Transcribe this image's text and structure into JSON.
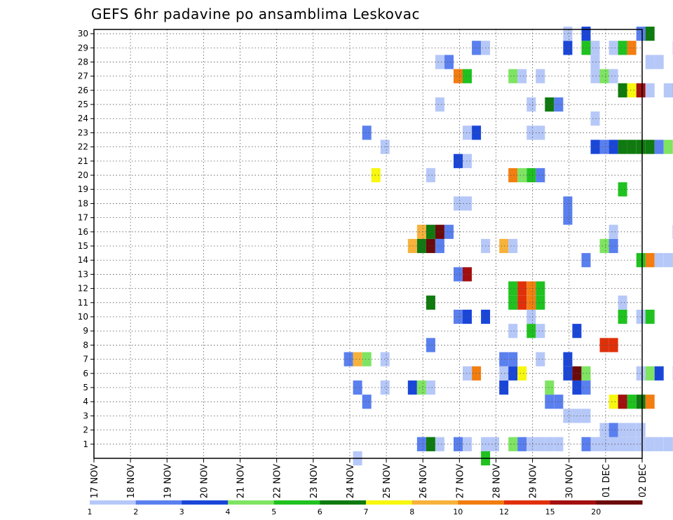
{
  "chart_data": {
    "type": "heatmap",
    "title": "GEFS 6hr padavine po ansamblima Leskovac",
    "xlabel": "",
    "ylabel": "",
    "x_ticks": [
      "17 NOV",
      "18 NOV",
      "19 NOV",
      "20 NOV",
      "21 NOV",
      "22 NOV",
      "23 NOV",
      "24 NOV",
      "25 NOV",
      "26 NOV",
      "27 NOV",
      "28 NOV",
      "29 NOV",
      "30 NOV",
      "01 DEC",
      "02 DEC"
    ],
    "y_ticks": [
      1,
      2,
      3,
      4,
      5,
      6,
      7,
      8,
      9,
      10,
      11,
      12,
      13,
      14,
      15,
      16,
      17,
      18,
      19,
      20,
      21,
      22,
      23,
      24,
      25,
      26,
      27,
      28,
      29,
      30
    ],
    "ylim": [
      0,
      30
    ],
    "grid": true,
    "colorbar": {
      "labels": [
        "1",
        "2",
        "3",
        "4",
        "5",
        "6",
        "7",
        "8",
        "10",
        "12",
        "15",
        "20"
      ],
      "colors": [
        "#b6c8f8",
        "#5a7fee",
        "#1a46d8",
        "#7ee462",
        "#1fc21f",
        "#0f7a0f",
        "#f7f70f",
        "#f7b23c",
        "#f27d10",
        "#e0300a",
        "#a30f0f",
        "#6b0a0a"
      ]
    },
    "cells": [
      [
        1,
        8.84,
        0
      ],
      [
        1,
        8.84,
        1
      ],
      [
        1,
        9.09,
        0
      ],
      [
        1,
        9.09,
        5
      ],
      [
        1,
        9.34,
        0
      ],
      [
        1,
        9.84,
        1
      ],
      [
        1,
        10.09,
        0
      ],
      [
        1,
        10.59,
        0
      ],
      [
        1,
        10.84,
        0
      ],
      [
        1,
        11.34,
        3
      ],
      [
        1,
        11.59,
        1
      ],
      [
        1,
        11.84,
        0
      ],
      [
        1,
        12.09,
        0
      ],
      [
        1,
        12.34,
        0
      ],
      [
        1,
        12.59,
        0
      ],
      [
        1,
        13.34,
        1
      ],
      [
        1,
        13.59,
        0
      ],
      [
        1,
        13.84,
        0
      ],
      [
        1,
        14.09,
        0
      ],
      [
        1,
        14.34,
        0
      ],
      [
        1,
        14.59,
        0
      ],
      [
        1,
        14.84,
        0
      ],
      [
        1,
        15.09,
        0
      ],
      [
        1,
        15.34,
        0
      ],
      [
        1,
        15.59,
        0
      ],
      [
        1,
        15.84,
        0
      ],
      [
        2,
        13.84,
        0
      ],
      [
        2,
        14.09,
        1
      ],
      [
        2,
        14.34,
        0
      ],
      [
        2,
        14.59,
        0
      ],
      [
        2,
        14.84,
        0
      ],
      [
        3,
        12.84,
        0
      ],
      [
        3,
        13.09,
        0
      ],
      [
        3,
        13.34,
        0
      ],
      [
        4,
        7.34,
        1
      ],
      [
        4,
        12.34,
        1
      ],
      [
        4,
        12.59,
        1
      ],
      [
        4,
        14.09,
        6
      ],
      [
        4,
        14.34,
        10
      ],
      [
        4,
        14.59,
        4
      ],
      [
        4,
        14.84,
        5
      ],
      [
        4,
        15.09,
        8
      ],
      [
        5,
        7.84,
        0
      ],
      [
        5,
        7.09,
        1
      ],
      [
        5,
        8.59,
        2
      ],
      [
        5,
        8.84,
        3
      ],
      [
        5,
        9.09,
        0
      ],
      [
        5,
        11.09,
        2
      ],
      [
        5,
        12.34,
        3
      ],
      [
        5,
        13.09,
        2
      ],
      [
        5,
        13.34,
        1
      ],
      [
        6,
        10.09,
        0
      ],
      [
        6,
        10.34,
        8
      ],
      [
        6,
        11.09,
        0
      ],
      [
        6,
        11.34,
        2
      ],
      [
        6,
        11.59,
        6
      ],
      [
        6,
        12.84,
        2
      ],
      [
        6,
        13.09,
        11
      ],
      [
        6,
        13.34,
        3
      ],
      [
        6,
        14.84,
        0
      ],
      [
        6,
        15.09,
        3
      ],
      [
        6,
        15.34,
        2
      ],
      [
        6,
        15.84,
        1
      ],
      [
        7,
        6.84,
        1
      ],
      [
        7,
        7.09,
        7
      ],
      [
        7,
        7.34,
        3
      ],
      [
        7,
        7.84,
        0
      ],
      [
        7,
        11.09,
        1
      ],
      [
        7,
        11.34,
        1
      ],
      [
        7,
        12.84,
        2
      ],
      [
        7,
        12.09,
        0
      ],
      [
        8,
        9.09,
        1
      ],
      [
        8,
        13.84,
        9
      ],
      [
        8,
        14.09,
        9
      ],
      [
        9,
        11.34,
        0
      ],
      [
        9,
        11.84,
        4
      ],
      [
        9,
        12.09,
        0
      ],
      [
        9,
        13.09,
        2
      ],
      [
        10,
        9.84,
        1
      ],
      [
        10,
        10.09,
        2
      ],
      [
        10,
        10.59,
        2
      ],
      [
        10,
        11.84,
        0
      ],
      [
        10,
        14.34,
        4
      ],
      [
        10,
        14.84,
        0
      ],
      [
        10,
        15.09,
        4
      ],
      [
        11,
        9.09,
        5
      ],
      [
        11,
        11.34,
        4
      ],
      [
        11,
        11.59,
        9
      ],
      [
        11,
        11.84,
        8
      ],
      [
        11,
        12.09,
        4
      ],
      [
        11,
        14.34,
        0
      ],
      [
        12,
        11.34,
        4
      ],
      [
        12,
        11.59,
        9
      ],
      [
        12,
        11.84,
        8
      ],
      [
        12,
        12.09,
        4
      ],
      [
        13,
        9.84,
        1
      ],
      [
        13,
        10.09,
        10
      ],
      [
        14,
        13.34,
        1
      ],
      [
        14,
        14.84,
        4
      ],
      [
        14,
        15.09,
        8
      ],
      [
        14,
        15.34,
        0
      ],
      [
        14,
        15.59,
        0
      ],
      [
        14,
        15.84,
        3
      ],
      [
        15,
        8.59,
        7
      ],
      [
        15,
        8.84,
        5
      ],
      [
        15,
        9.09,
        11
      ],
      [
        15,
        9.34,
        1
      ],
      [
        15,
        10.59,
        0
      ],
      [
        15,
        11.09,
        7
      ],
      [
        15,
        11.34,
        0
      ],
      [
        15,
        13.84,
        3
      ],
      [
        15,
        14.09,
        1
      ],
      [
        16,
        8.84,
        7
      ],
      [
        16,
        9.09,
        5
      ],
      [
        16,
        9.34,
        11
      ],
      [
        16,
        9.59,
        1
      ],
      [
        16,
        14.09,
        0
      ],
      [
        16,
        15.84,
        2
      ],
      [
        17,
        12.84,
        1
      ],
      [
        18,
        9.84,
        0
      ],
      [
        18,
        10.09,
        0
      ],
      [
        18,
        12.84,
        1
      ],
      [
        19,
        14.34,
        4
      ],
      [
        20,
        7.59,
        6
      ],
      [
        20,
        9.09,
        0
      ],
      [
        20,
        11.34,
        8
      ],
      [
        20,
        11.59,
        3
      ],
      [
        20,
        11.84,
        4
      ],
      [
        20,
        12.09,
        1
      ],
      [
        21,
        9.84,
        2
      ],
      [
        21,
        10.09,
        0
      ],
      [
        22,
        7.84,
        0
      ],
      [
        22,
        13.59,
        2
      ],
      [
        22,
        13.84,
        1
      ],
      [
        22,
        14.09,
        2
      ],
      [
        22,
        14.34,
        5
      ],
      [
        22,
        14.59,
        5
      ],
      [
        22,
        14.84,
        5
      ],
      [
        22,
        15.09,
        5
      ],
      [
        22,
        15.34,
        1
      ],
      [
        22,
        15.59,
        3
      ],
      [
        23,
        7.34,
        1
      ],
      [
        23,
        10.09,
        0
      ],
      [
        23,
        10.34,
        2
      ],
      [
        23,
        11.84,
        0
      ],
      [
        23,
        12.09,
        0
      ],
      [
        24,
        13.59,
        0
      ],
      [
        25,
        9.34,
        0
      ],
      [
        25,
        11.84,
        0
      ],
      [
        25,
        12.34,
        5
      ],
      [
        25,
        12.59,
        1
      ],
      [
        26,
        14.34,
        5
      ],
      [
        26,
        14.59,
        6
      ],
      [
        26,
        14.84,
        10
      ],
      [
        26,
        15.09,
        0
      ],
      [
        26,
        15.59,
        0
      ],
      [
        26,
        15.84,
        1
      ],
      [
        27,
        9.84,
        8
      ],
      [
        27,
        10.09,
        4
      ],
      [
        27,
        11.34,
        3
      ],
      [
        27,
        11.59,
        0
      ],
      [
        27,
        12.09,
        0
      ],
      [
        27,
        13.59,
        0
      ],
      [
        27,
        13.84,
        3
      ],
      [
        27,
        14.09,
        0
      ],
      [
        28,
        9.34,
        0
      ],
      [
        28,
        9.59,
        1
      ],
      [
        28,
        13.59,
        0
      ],
      [
        28,
        15.09,
        0
      ],
      [
        28,
        15.34,
        0
      ],
      [
        29,
        10.34,
        1
      ],
      [
        29,
        10.59,
        0
      ],
      [
        29,
        12.84,
        2
      ],
      [
        29,
        13.34,
        4
      ],
      [
        29,
        13.59,
        0
      ],
      [
        29,
        14.09,
        0
      ],
      [
        29,
        14.34,
        4
      ],
      [
        29,
        14.59,
        8
      ],
      [
        29,
        15.84,
        1
      ],
      [
        29,
        16.09,
        1
      ],
      [
        30,
        12.84,
        0
      ],
      [
        30,
        13.34,
        2
      ],
      [
        30,
        14.84,
        1
      ],
      [
        30,
        15.09,
        5
      ]
    ],
    "cells_format": "[member, day_offset_from_17NOV, color_index]",
    "extra_cells": [
      [
        0,
        7.09,
        0
      ],
      [
        0,
        10.59,
        4
      ]
    ]
  }
}
